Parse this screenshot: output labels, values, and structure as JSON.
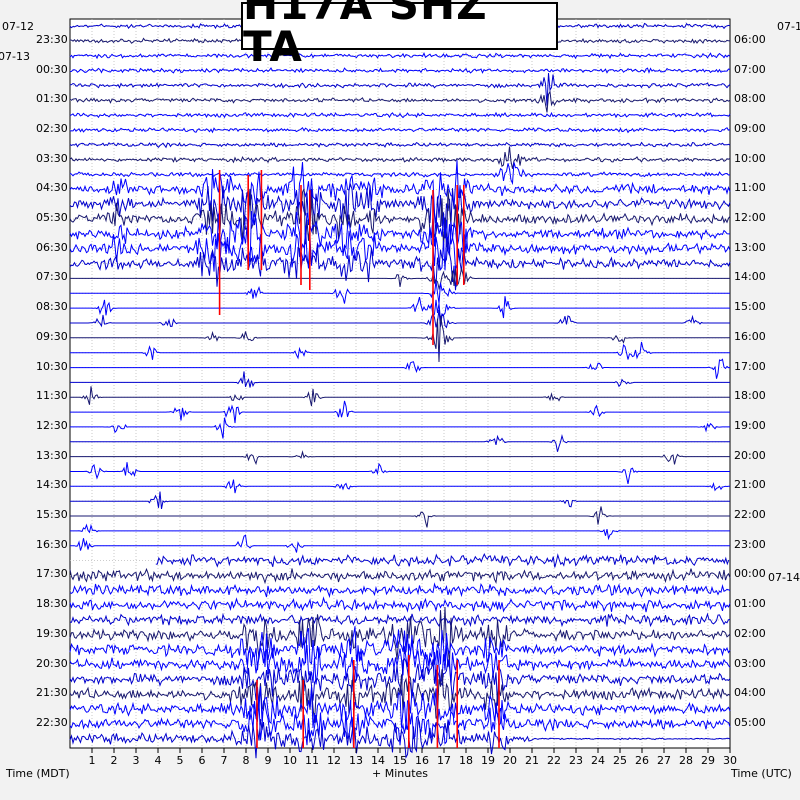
{
  "title": "H17A SHZ TA",
  "chart_data": {
    "type": "line",
    "title": "H17A SHZ TA",
    "xlabel": "+ Minutes",
    "xlim": [
      0,
      30
    ],
    "x_ticks": [
      "1",
      "2",
      "3",
      "4",
      "5",
      "6",
      "7",
      "8",
      "9",
      "10",
      "11",
      "12",
      "13",
      "14",
      "15",
      "16",
      "17",
      "18",
      "19",
      "20",
      "21",
      "22",
      "23",
      "24",
      "25",
      "26",
      "27",
      "28",
      "29",
      "30"
    ],
    "left_axis_label": "Time (MDT)",
    "right_axis_label": "Time (UTC)",
    "left_date_labels": [
      "07-12",
      "07-13"
    ],
    "right_date_labels": [
      "07-1",
      "07-14"
    ],
    "left_ticks": [
      "23:30",
      "00:30",
      "01:30",
      "02:30",
      "03:30",
      "04:30",
      "05:30",
      "06:30",
      "07:30",
      "08:30",
      "09:30",
      "10:30",
      "11:30",
      "12:30",
      "13:30",
      "14:30",
      "15:30",
      "16:30",
      "17:30",
      "18:30",
      "19:30",
      "20:30",
      "21:30",
      "22:30"
    ],
    "right_ticks": [
      "06:00",
      "07:00",
      "08:00",
      "09:00",
      "10:00",
      "11:00",
      "12:00",
      "13:00",
      "14:00",
      "15:00",
      "16:00",
      "17:00",
      "18:00",
      "19:00",
      "20:00",
      "21:00",
      "22:00",
      "23:00",
      "00:00",
      "01:00",
      "02:00",
      "03:00",
      "04:00",
      "05:00"
    ],
    "trace_colors": [
      "#0000cd",
      "#191970",
      "#0000ff",
      "#0000ff"
    ],
    "clip_color": "#ff0000",
    "grid": true
  }
}
